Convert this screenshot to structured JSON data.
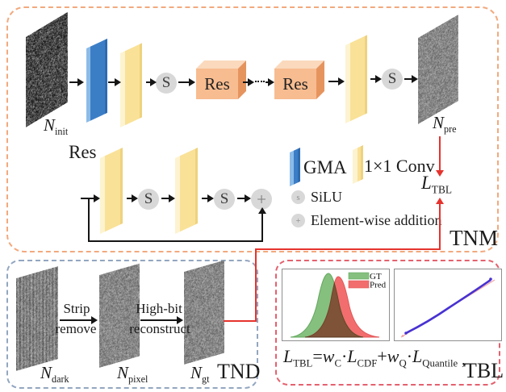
{
  "colors": {
    "tnm_border": "#f2a97d",
    "tnd_border": "#93a6c0",
    "tbl_border": "#e4616e",
    "red_line": "#e6332d",
    "gma_blue": "#3c7ec6",
    "conv_yellow": "#f9e197",
    "res_orange": "#f7bc90",
    "gt_green": "#85c07f",
    "pred_red": "#f26e6e",
    "qq_line_blue": "#4732d2"
  },
  "tnm": {
    "label": "TNM",
    "n_init_html": "<i>N</i><sub>init</sub>",
    "n_pre_html": "<i>N</i><sub>pre</sub>",
    "res_box_label": "Res",
    "res_detail_label": "Res",
    "silu_symbol": "S",
    "add_symbol": "+",
    "loss_html": "<i>L</i><sub>TBL</sub>",
    "legend": {
      "gma": "GMA",
      "conv": "1×1 Conv",
      "silu_symbol": "s",
      "silu": "SiLU",
      "add_symbol": "+",
      "add": "Element-wise addition"
    }
  },
  "tnd": {
    "label": "TND",
    "n_dark_html": "<i>N</i><sub>dark</sub>",
    "n_pixel_html": "<i>N</i><sub>pixel</sub>",
    "n_gt_html": "<i>N</i><sub>gt</sub>",
    "step1_line1": "Strip",
    "step1_line2": "remove",
    "step2_line1": "High-bit",
    "step2_line2": "reconstruct"
  },
  "tbl": {
    "label": "TBL",
    "legend_gt": "GT",
    "legend_pred": "Pred",
    "formula_html": "<i>L</i><sub>TBL</sub>=<i>w</i><sub>C</sub>·<i>L</i><sub>CDF</sub>+<i>w</i><sub>Q</sub>·<i>L</i><sub>Quantile</sub>",
    "formula_comma": ","
  },
  "chart_data": [
    {
      "type": "area",
      "title": "",
      "series": [
        {
          "name": "GT",
          "shape": "bell curve",
          "peak_x_rel": 0.43,
          "color": "#85c07f"
        },
        {
          "name": "Pred",
          "shape": "bell curve shifted right",
          "peak_x_rel": 0.52,
          "color": "#f26e6e"
        }
      ],
      "legend_position": "top-right",
      "axes_labeled": false
    },
    {
      "type": "line",
      "title": "",
      "series": [
        {
          "name": "quantile-quantile line",
          "color": "#4732d2",
          "x_rel": [
            0.11,
            0.5,
            0.9
          ],
          "y_rel": [
            0.89,
            0.53,
            0.15
          ]
        },
        {
          "name": "reference line",
          "color": "#f2a6a6"
        }
      ],
      "axes_labeled": false
    }
  ]
}
